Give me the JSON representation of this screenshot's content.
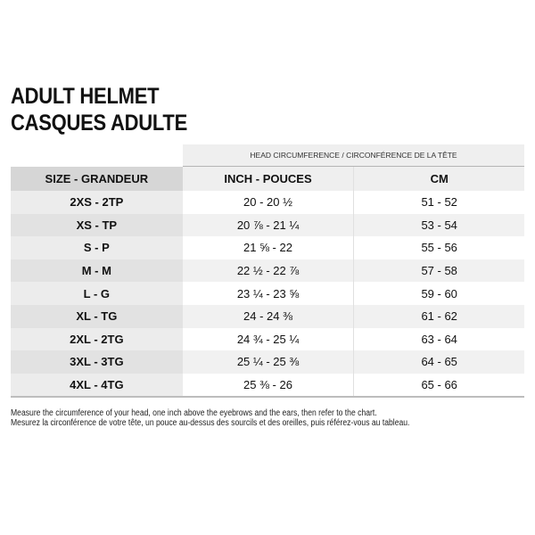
{
  "title_line1": "ADULT HELMET",
  "title_line2": "CASQUES ADULTE",
  "table": {
    "group_header": "HEAD CIRCUMFERENCE / CIRCONFÉRENCE DE LA TÊTE",
    "columns": [
      "SIZE - GRANDEUR",
      "INCH - POUCES",
      "CM"
    ],
    "rows": [
      [
        "2XS - 2TP",
        "20 - 20 ½",
        "51 - 52"
      ],
      [
        "XS - TP",
        "20 ⅞ - 21 ¼",
        "53 - 54"
      ],
      [
        "S - P",
        "21 ⅝ - 22",
        "55 - 56"
      ],
      [
        "M - M",
        "22 ½ - 22 ⅞",
        "57 - 58"
      ],
      [
        "L - G",
        "23 ¼ - 23 ⅝",
        "59 - 60"
      ],
      [
        "XL - TG",
        "24 - 24 ⅜",
        "61 - 62"
      ],
      [
        "2XL - 2TG",
        "24 ¾ - 25 ¼",
        "63 - 64"
      ],
      [
        "3XL - 3TG",
        "25 ¼ - 25 ⅜",
        "64 - 65"
      ],
      [
        "4XL - 4TG",
        "25 ⅜ - 26",
        "65 - 66"
      ]
    ]
  },
  "notes": [
    "Measure the circumference of your head, one inch above the eyebrows and the ears, then refer to the chart.",
    "Mesurez la circonférence de votre tête, un pouce au-dessus des sourcils et des oreilles, puis référez-vous au tableau."
  ]
}
